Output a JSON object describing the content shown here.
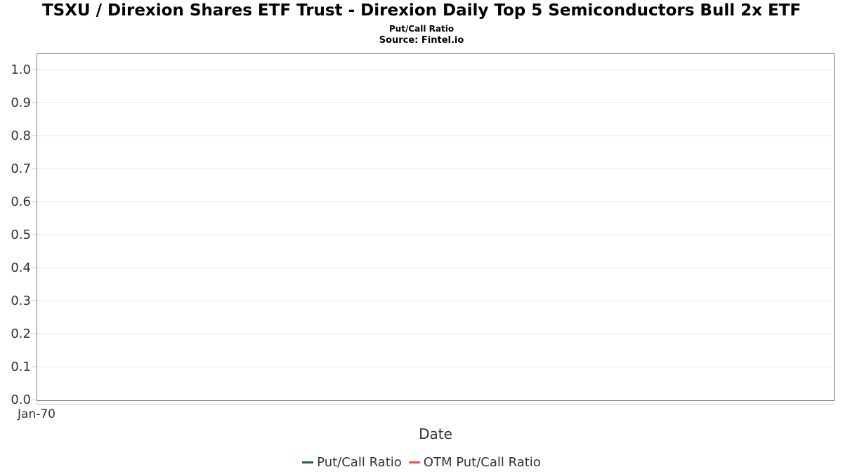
{
  "header": {
    "title": "TSXU / Direxion Shares ETF Trust - Direxion Daily Top 5 Semiconductors Bull 2x ETF",
    "subtitle": "Put/Call Ratio",
    "source": "Source: Fintel.io"
  },
  "chart_data": {
    "type": "line",
    "title": "Put/Call Ratio",
    "subtitle": "Source: Fintel.io",
    "xlabel": "Date",
    "ylabel": "",
    "ylim": [
      0.0,
      1.05
    ],
    "yticks": [
      "0.0",
      "0.1",
      "0.2",
      "0.3",
      "0.4",
      "0.5",
      "0.6",
      "0.7",
      "0.8",
      "0.9",
      "1.0"
    ],
    "xticks": [
      "Jan-70"
    ],
    "grid": true,
    "legend_position": "bottom-center",
    "series": [
      {
        "name": "Put/Call Ratio",
        "color": "#2b5c34",
        "values": []
      },
      {
        "name": "OTM Put/Call Ratio",
        "color": "#fa4b4b",
        "values": []
      }
    ]
  },
  "colors": {
    "background": "#ffffff",
    "plot_border": "#7f7f7f",
    "gridline": "#e4e4e4",
    "tick": "#c9c9c9",
    "axis_line": "#c9c9c9",
    "label_text": "#333333",
    "title_text": "#000000"
  }
}
